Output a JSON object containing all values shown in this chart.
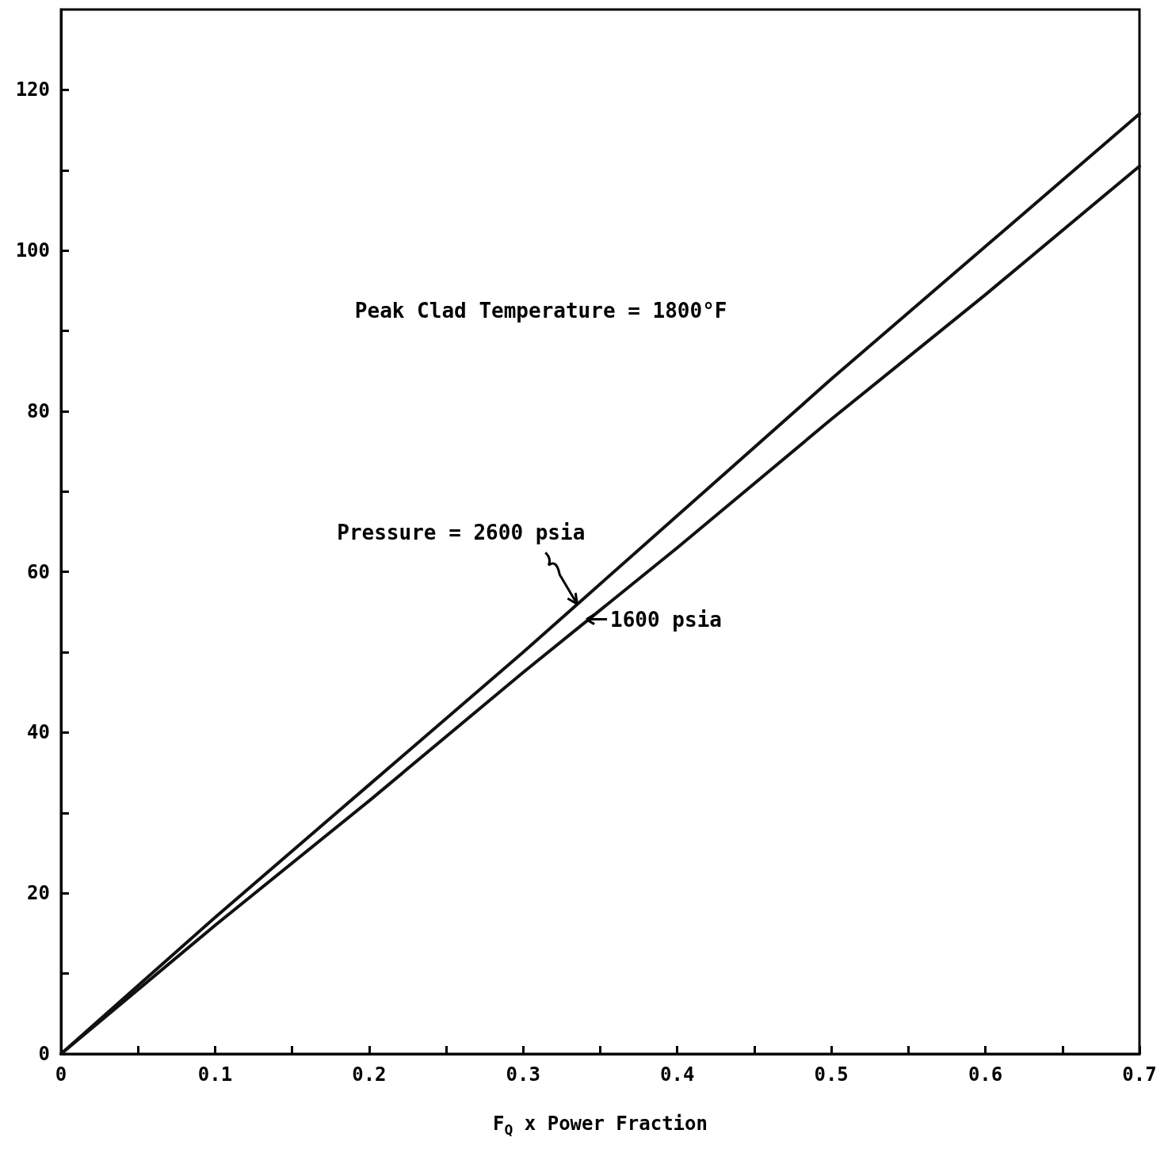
{
  "chart_data": {
    "type": "line",
    "xlabel": "F$_{Q}$ x Power Fraction",
    "x": [
      0,
      0.1,
      0.2,
      0.3,
      0.4,
      0.5,
      0.6,
      0.7
    ],
    "series": [
      {
        "color": "#111111",
        "values": [
          0,
          17,
          33.5,
          50,
          67,
          84,
          100.5,
          117
        ]
      },
      {
        "color": "#111111",
        "values": [
          0,
          16,
          31.5,
          47.5,
          63,
          79,
          94.5,
          110.5
        ]
      }
    ],
    "xlim": [
      0,
      0.7
    ],
    "xticks": [
      0,
      {
        "value": 0.05,
        "label": null
      },
      0.1,
      {
        "value": 0.15,
        "label": null
      },
      0.2,
      {
        "value": 0.25,
        "label": null
      },
      0.3,
      {
        "value": 0.35,
        "label": null
      },
      0.4,
      {
        "value": 0.45,
        "label": null
      },
      0.5,
      {
        "value": 0.55,
        "label": null
      },
      0.6,
      {
        "value": 0.65,
        "label": null
      },
      0.7
    ],
    "ylim": [
      0,
      130
    ],
    "yticks": [
      0,
      {
        "value": 10,
        "label": null
      },
      20,
      {
        "value": 30,
        "label": null
      },
      40,
      {
        "value": 50,
        "label": null
      },
      60,
      {
        "value": 70,
        "label": null
      },
      80,
      {
        "value": 90,
        "label": null
      },
      100,
      {
        "value": 110,
        "label": null
      },
      120
    ],
    "annotations": [
      "Peak Clad Temperature = 1800°F",
      {
        "text": "Pressure = 2600 psia",
        "x": 0.335,
        "y": 56
      },
      {
        "text": "1600 psia",
        "x": 0.34,
        "y": 53.5
      }
    ],
    "marker": "none",
    "line_style": "solid"
  }
}
